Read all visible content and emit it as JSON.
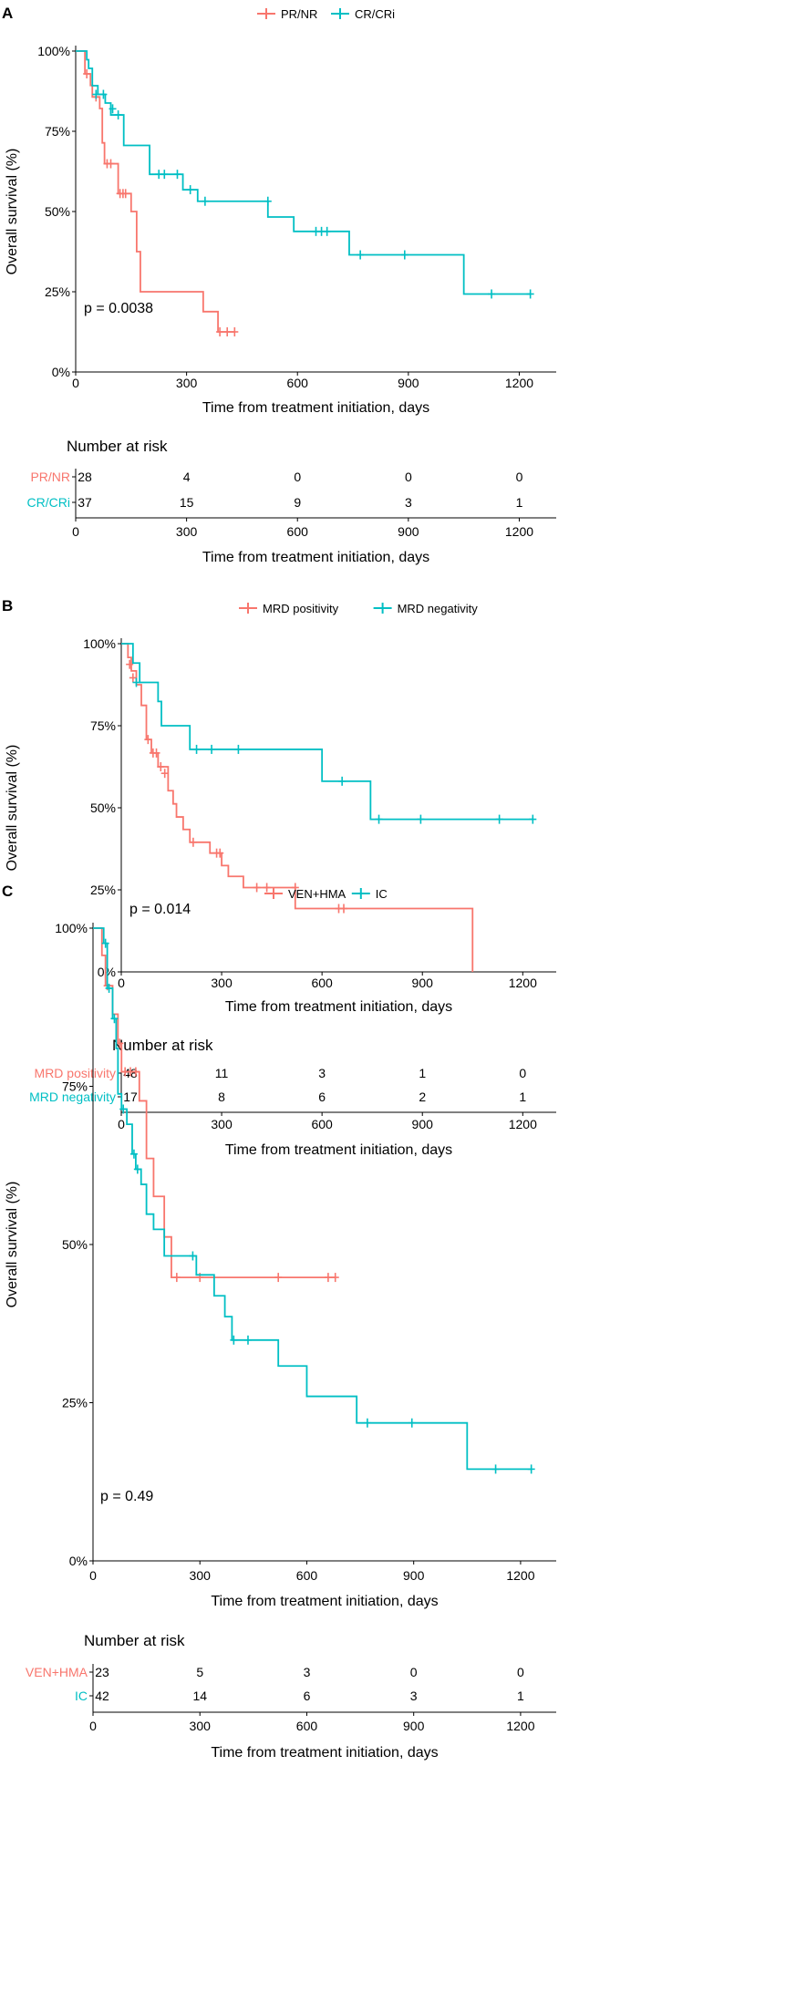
{
  "colors": {
    "red": "#f8766d",
    "teal": "#00bfc4",
    "axis": "#000000"
  },
  "chart_data": [
    {
      "panel": "A",
      "type": "line",
      "subtype": "kaplan-meier",
      "xlabel": "Time from treatment initiation, days",
      "ylabel": "Overall survival (%)",
      "xlim": [
        0,
        1300
      ],
      "ylim": [
        0,
        100
      ],
      "xticks": [
        "0",
        "300",
        "600",
        "900",
        "1200"
      ],
      "yticks": [
        "0%",
        "25%",
        "50%",
        "75%",
        "100%"
      ],
      "pvalue": "p = 0.0038",
      "legend_position": "top",
      "risk_title": "Number at risk",
      "risk_xticks": [
        "0",
        "300",
        "600",
        "900",
        "1200"
      ],
      "series": [
        {
          "name": "PR/NR",
          "color": "#f8766d",
          "steps": [
            [
              0,
              100
            ],
            [
              25,
              92.9
            ],
            [
              40,
              89.3
            ],
            [
              45,
              85.7
            ],
            [
              65,
              82.1
            ],
            [
              72,
              71.4
            ],
            [
              78,
              64.9
            ],
            [
              115,
              55.6
            ],
            [
              150,
              50
            ],
            [
              165,
              37.5
            ],
            [
              175,
              25
            ],
            [
              345,
              25
            ],
            [
              345,
              18.8
            ],
            [
              385,
              18.8
            ],
            [
              385,
              12.5
            ],
            [
              430,
              12.5
            ]
          ],
          "censors": [
            [
              30,
              92.9
            ],
            [
              55,
              85.7
            ],
            [
              85,
              64.9
            ],
            [
              95,
              64.9
            ],
            [
              120,
              55.6
            ],
            [
              128,
              55.6
            ],
            [
              135,
              55.6
            ],
            [
              390,
              12.5
            ],
            [
              410,
              12.5
            ],
            [
              430,
              12.5
            ]
          ],
          "risk": [
            "28",
            "4",
            "0",
            "0",
            "0"
          ]
        },
        {
          "name": "CR/CRi",
          "color": "#00bfc4",
          "steps": [
            [
              0,
              100
            ],
            [
              30,
              97.3
            ],
            [
              35,
              94.6
            ],
            [
              45,
              89.2
            ],
            [
              60,
              86.5
            ],
            [
              80,
              83.8
            ],
            [
              95,
              80.1
            ],
            [
              130,
              70.6
            ],
            [
              200,
              61.6
            ],
            [
              290,
              56.8
            ],
            [
              330,
              53.2
            ],
            [
              520,
              53.2
            ],
            [
              520,
              48.3
            ],
            [
              590,
              48.3
            ],
            [
              590,
              43.8
            ],
            [
              740,
              43.8
            ],
            [
              740,
              36.5
            ],
            [
              1050,
              36.5
            ],
            [
              1050,
              24.3
            ],
            [
              1230,
              24.3
            ]
          ],
          "censors": [
            [
              55,
              86.5
            ],
            [
              75,
              86.5
            ],
            [
              100,
              82
            ],
            [
              115,
              80.1
            ],
            [
              225,
              61.6
            ],
            [
              240,
              61.6
            ],
            [
              275,
              61.6
            ],
            [
              310,
              56.8
            ],
            [
              350,
              53.2
            ],
            [
              520,
              53.2
            ],
            [
              650,
              43.8
            ],
            [
              665,
              43.8
            ],
            [
              680,
              43.8
            ],
            [
              770,
              36.5
            ],
            [
              890,
              36.5
            ],
            [
              1125,
              24.3
            ],
            [
              1230,
              24.3
            ]
          ],
          "risk": [
            "37",
            "15",
            "9",
            "3",
            "1"
          ]
        }
      ]
    },
    {
      "panel": "B",
      "type": "line",
      "subtype": "kaplan-meier",
      "xlabel": "Time from treatment initiation, days",
      "ylabel": "Overall survival (%)",
      "xlim": [
        0,
        1300
      ],
      "ylim": [
        0,
        100
      ],
      "xticks": [
        "0",
        "300",
        "600",
        "900",
        "1200"
      ],
      "yticks": [
        "0%",
        "25%",
        "50%",
        "75%",
        "100%"
      ],
      "pvalue": "p = 0.014",
      "legend_position": "top",
      "risk_title": "Number at risk",
      "risk_xticks": [
        "0",
        "300",
        "600",
        "900",
        "1200"
      ],
      "series": [
        {
          "name": "MRD positivity",
          "color": "#f8766d",
          "steps": [
            [
              0,
              100
            ],
            [
              20,
              95.8
            ],
            [
              30,
              91.7
            ],
            [
              45,
              87.5
            ],
            [
              60,
              81.2
            ],
            [
              75,
              70.8
            ],
            [
              90,
              66.7
            ],
            [
              110,
              62.5
            ],
            [
              140,
              55.2
            ],
            [
              155,
              51.2
            ],
            [
              165,
              47.2
            ],
            [
              185,
              43.4
            ],
            [
              205,
              39.5
            ],
            [
              265,
              39.5
            ],
            [
              265,
              36.2
            ],
            [
              300,
              32.4
            ],
            [
              320,
              29.1
            ],
            [
              365,
              29.1
            ],
            [
              365,
              25.7
            ],
            [
              520,
              25.7
            ],
            [
              520,
              19.3
            ],
            [
              1050,
              19.3
            ],
            [
              1050,
              0
            ]
          ],
          "censors": [
            [
              25,
              93.7
            ],
            [
              35,
              89.6
            ],
            [
              80,
              70.8
            ],
            [
              95,
              66.7
            ],
            [
              105,
              66.7
            ],
            [
              118,
              62.5
            ],
            [
              130,
              60.5
            ],
            [
              215,
              39.5
            ],
            [
              285,
              36.2
            ],
            [
              295,
              36.2
            ],
            [
              405,
              25.7
            ],
            [
              435,
              25.7
            ],
            [
              520,
              25.7
            ],
            [
              650,
              19.3
            ],
            [
              665,
              19.3
            ]
          ],
          "risk": [
            "48",
            "11",
            "3",
            "1",
            "0"
          ]
        },
        {
          "name": "MRD negativity",
          "color": "#00bfc4",
          "steps": [
            [
              0,
              100
            ],
            [
              35,
              94.1
            ],
            [
              55,
              88.2
            ],
            [
              110,
              88.2
            ],
            [
              110,
              82.4
            ],
            [
              120,
              75
            ],
            [
              205,
              75
            ],
            [
              205,
              67.8
            ],
            [
              600,
              67.8
            ],
            [
              600,
              58.1
            ],
            [
              745,
              58.1
            ],
            [
              745,
              46.5
            ],
            [
              1230,
              46.5
            ]
          ],
          "censors": [
            [
              45,
              88.2
            ],
            [
              225,
              67.8
            ],
            [
              270,
              67.8
            ],
            [
              350,
              67.8
            ],
            [
              660,
              58.1
            ],
            [
              770,
              46.5
            ],
            [
              895,
              46.5
            ],
            [
              1130,
              46.5
            ],
            [
              1230,
              46.5
            ]
          ],
          "risk": [
            "17",
            "8",
            "6",
            "2",
            "1"
          ]
        }
      ]
    },
    {
      "panel": "C",
      "type": "line",
      "subtype": "kaplan-meier",
      "xlabel": "Time from treatment initiation, days",
      "ylabel": "Overall survival (%)",
      "xlim": [
        0,
        1300
      ],
      "ylim": [
        0,
        100
      ],
      "xticks": [
        "0",
        "300",
        "600",
        "900",
        "1200"
      ],
      "yticks": [
        "0%",
        "25%",
        "50%",
        "75%",
        "100%"
      ],
      "pvalue": "p = 0.49",
      "legend_position": "top",
      "risk_title": "Number at risk",
      "risk_xticks": [
        "0",
        "300",
        "600",
        "900",
        "1200"
      ],
      "series": [
        {
          "name": "VEN+HMA",
          "color": "#f8766d",
          "steps": [
            [
              0,
              100
            ],
            [
              25,
              95.7
            ],
            [
              35,
              90.9
            ],
            [
              55,
              86.4
            ],
            [
              70,
              81.8
            ],
            [
              80,
              77.3
            ],
            [
              130,
              77.3
            ],
            [
              130,
              72.7
            ],
            [
              150,
              63.6
            ],
            [
              170,
              57.6
            ],
            [
              200,
              51.2
            ],
            [
              220,
              44.8
            ],
            [
              680,
              44.8
            ]
          ],
          "censors": [
            [
              40,
              90.9
            ],
            [
              75,
              81.8
            ],
            [
              90,
              77.3
            ],
            [
              105,
              77.3
            ],
            [
              120,
              77.3
            ],
            [
              235,
              44.8
            ],
            [
              300,
              44.8
            ],
            [
              520,
              44.8
            ],
            [
              660,
              44.8
            ],
            [
              680,
              44.8
            ]
          ],
          "risk": [
            "23",
            "5",
            "3",
            "0",
            "0"
          ]
        },
        {
          "name": "IC",
          "color": "#00bfc4",
          "steps": [
            [
              0,
              100
            ],
            [
              30,
              97.6
            ],
            [
              40,
              90.5
            ],
            [
              55,
              85.7
            ],
            [
              65,
              81
            ],
            [
              70,
              73.8
            ],
            [
              80,
              71.4
            ],
            [
              95,
              69
            ],
            [
              110,
              64.3
            ],
            [
              120,
              61.9
            ],
            [
              135,
              59.5
            ],
            [
              150,
              54.8
            ],
            [
              170,
              52.4
            ],
            [
              200,
              48.2
            ],
            [
              290,
              48.2
            ],
            [
              290,
              45.2
            ],
            [
              340,
              41.9
            ],
            [
              370,
              38.6
            ],
            [
              390,
              34.9
            ],
            [
              450,
              34.9
            ],
            [
              520,
              30.8
            ],
            [
              600,
              26
            ],
            [
              740,
              26
            ],
            [
              740,
              21.8
            ],
            [
              1050,
              21.8
            ],
            [
              1050,
              14.5
            ],
            [
              1230,
              14.5
            ]
          ],
          "censors": [
            [
              35,
              97.6
            ],
            [
              45,
              90.5
            ],
            [
              60,
              85.7
            ],
            [
              85,
              71.4
            ],
            [
              115,
              64.3
            ],
            [
              125,
              61.9
            ],
            [
              280,
              48.2
            ],
            [
              395,
              34.9
            ],
            [
              435,
              34.9
            ],
            [
              770,
              21.8
            ],
            [
              895,
              21.8
            ],
            [
              1130,
              14.5
            ],
            [
              1230,
              14.5
            ]
          ],
          "risk": [
            "42",
            "14",
            "6",
            "3",
            "1"
          ]
        }
      ]
    }
  ]
}
